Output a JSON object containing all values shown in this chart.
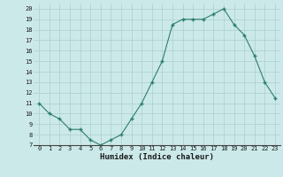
{
  "x": [
    0,
    1,
    2,
    3,
    4,
    5,
    6,
    7,
    8,
    9,
    10,
    11,
    12,
    13,
    14,
    15,
    16,
    17,
    18,
    19,
    20,
    21,
    22,
    23
  ],
  "y": [
    11,
    10,
    9.5,
    8.5,
    8.5,
    7.5,
    7,
    7.5,
    8,
    9.5,
    11,
    13,
    15,
    18.5,
    19,
    19,
    19,
    19.5,
    20,
    18.5,
    17.5,
    15.5,
    13,
    11.5
  ],
  "xlabel": "Humidex (Indice chaleur)",
  "bg_color": "#cce9e9",
  "line_color": "#2d7d6e",
  "grid_color": "#aacfcf",
  "xlim": [
    -0.5,
    23.5
  ],
  "ylim": [
    7,
    20.5
  ],
  "yticks": [
    7,
    8,
    9,
    10,
    11,
    12,
    13,
    14,
    15,
    16,
    17,
    18,
    19,
    20
  ],
  "xticks": [
    0,
    1,
    2,
    3,
    4,
    5,
    6,
    7,
    8,
    9,
    10,
    11,
    12,
    13,
    14,
    15,
    16,
    17,
    18,
    19,
    20,
    21,
    22,
    23
  ]
}
